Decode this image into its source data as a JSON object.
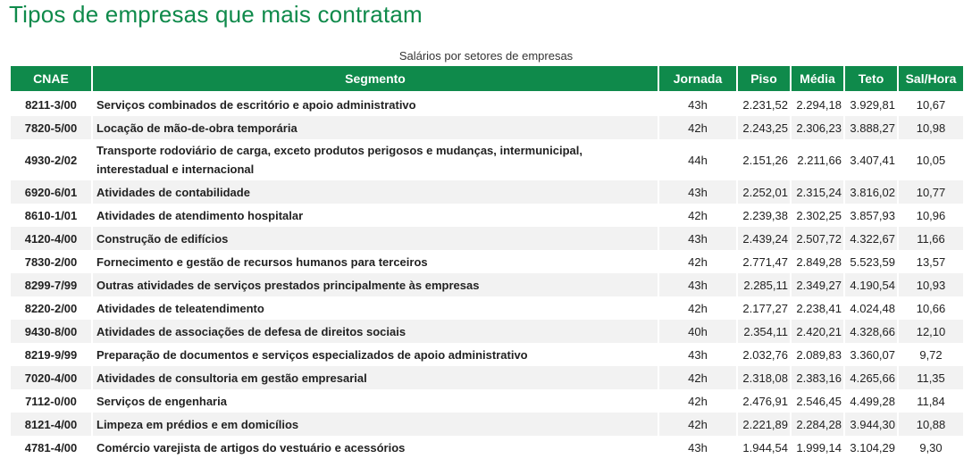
{
  "title": "Tipos de empresas que mais contratam",
  "caption": "Salários por setores de empresas",
  "columns": [
    "CNAE",
    "Segmento",
    "Jornada",
    "Piso",
    "Média",
    "Teto",
    "Sal/Hora"
  ],
  "rows": [
    {
      "cnae": "8211-3/00",
      "segmento": "Serviços combinados de escritório e apoio administrativo",
      "jornada": "43h",
      "piso": "2.231,52",
      "media": "2.294,18",
      "teto": "3.929,81",
      "salhora": "10,67"
    },
    {
      "cnae": "7820-5/00",
      "segmento": "Locação de mão-de-obra temporária",
      "jornada": "42h",
      "piso": "2.243,25",
      "media": "2.306,23",
      "teto": "3.888,27",
      "salhora": "10,98"
    },
    {
      "cnae": "4930-2/02",
      "segmento": "Transporte rodoviário de carga, exceto produtos perigosos e mudanças, intermunicipal, interestadual e internacional",
      "jornada": "44h",
      "piso": "2.151,26",
      "media": "2.211,66",
      "teto": "3.407,41",
      "salhora": "10,05"
    },
    {
      "cnae": "6920-6/01",
      "segmento": "Atividades de contabilidade",
      "jornada": "43h",
      "piso": "2.252,01",
      "media": "2.315,24",
      "teto": "3.816,02",
      "salhora": "10,77"
    },
    {
      "cnae": "8610-1/01",
      "segmento": "Atividades de atendimento hospitalar",
      "jornada": "42h",
      "piso": "2.239,38",
      "media": "2.302,25",
      "teto": "3.857,93",
      "salhora": "10,96"
    },
    {
      "cnae": "4120-4/00",
      "segmento": "Construção de edifícios",
      "jornada": "43h",
      "piso": "2.439,24",
      "media": "2.507,72",
      "teto": "4.322,67",
      "salhora": "11,66"
    },
    {
      "cnae": "7830-2/00",
      "segmento": "Fornecimento e gestão de recursos humanos para terceiros",
      "jornada": "42h",
      "piso": "2.771,47",
      "media": "2.849,28",
      "teto": "5.523,59",
      "salhora": "13,57"
    },
    {
      "cnae": "8299-7/99",
      "segmento": "Outras atividades de serviços prestados principalmente às empresas",
      "jornada": "43h",
      "piso": "2.285,11",
      "media": "2.349,27",
      "teto": "4.190,54",
      "salhora": "10,93"
    },
    {
      "cnae": "8220-2/00",
      "segmento": "Atividades de teleatendimento",
      "jornada": "42h",
      "piso": "2.177,27",
      "media": "2.238,41",
      "teto": "4.024,48",
      "salhora": "10,66"
    },
    {
      "cnae": "9430-8/00",
      "segmento": "Atividades de associações de defesa de direitos sociais",
      "jornada": "40h",
      "piso": "2.354,11",
      "media": "2.420,21",
      "teto": "4.328,66",
      "salhora": "12,10"
    },
    {
      "cnae": "8219-9/99",
      "segmento": "Preparação de documentos e serviços especializados de apoio administrativo",
      "jornada": "43h",
      "piso": "2.032,76",
      "media": "2.089,83",
      "teto": "3.360,07",
      "salhora": "9,72"
    },
    {
      "cnae": "7020-4/00",
      "segmento": "Atividades de consultoria em gestão empresarial",
      "jornada": "42h",
      "piso": "2.318,08",
      "media": "2.383,16",
      "teto": "4.265,66",
      "salhora": "11,35"
    },
    {
      "cnae": "7112-0/00",
      "segmento": "Serviços de engenharia",
      "jornada": "42h",
      "piso": "2.476,91",
      "media": "2.546,45",
      "teto": "4.499,28",
      "salhora": "11,84"
    },
    {
      "cnae": "8121-4/00",
      "segmento": "Limpeza em prédios e em domicílios",
      "jornada": "42h",
      "piso": "2.221,89",
      "media": "2.284,28",
      "teto": "3.944,30",
      "salhora": "10,88"
    },
    {
      "cnae": "4781-4/00",
      "segmento": "Comércio varejista de artigos do vestuário e acessórios",
      "jornada": "43h",
      "piso": "1.944,54",
      "media": "1.999,14",
      "teto": "3.104,29",
      "salhora": "9,30"
    }
  ]
}
